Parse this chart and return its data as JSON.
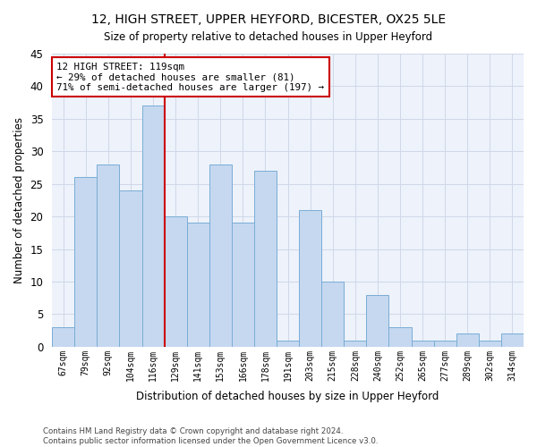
{
  "title": "12, HIGH STREET, UPPER HEYFORD, BICESTER, OX25 5LE",
  "subtitle": "Size of property relative to detached houses in Upper Heyford",
  "xlabel": "Distribution of detached houses by size in Upper Heyford",
  "ylabel": "Number of detached properties",
  "categories": [
    "67sqm",
    "79sqm",
    "92sqm",
    "104sqm",
    "116sqm",
    "129sqm",
    "141sqm",
    "153sqm",
    "166sqm",
    "178sqm",
    "191sqm",
    "203sqm",
    "215sqm",
    "228sqm",
    "240sqm",
    "252sqm",
    "265sqm",
    "277sqm",
    "289sqm",
    "302sqm",
    "314sqm"
  ],
  "values": [
    3,
    26,
    28,
    24,
    37,
    20,
    19,
    28,
    19,
    27,
    1,
    21,
    10,
    1,
    8,
    3,
    1,
    1,
    2,
    1,
    2
  ],
  "bar_color": "#c5d8f0",
  "bar_edge_color": "#7aadd4",
  "grid_color": "#d0d8e8",
  "background_color": "#edf2fb",
  "vline_index": 4.5,
  "annotation_text_line1": "12 HIGH STREET: 119sqm",
  "annotation_text_line2": "← 29% of detached houses are smaller (81)",
  "annotation_text_line3": "71% of semi-detached houses are larger (197) →",
  "annotation_box_facecolor": "#ffffff",
  "annotation_box_edgecolor": "#cc0000",
  "vline_color": "#cc0000",
  "footer_line1": "Contains HM Land Registry data © Crown copyright and database right 2024.",
  "footer_line2": "Contains public sector information licensed under the Open Government Licence v3.0.",
  "ylim": [
    0,
    45
  ],
  "yticks": [
    0,
    5,
    10,
    15,
    20,
    25,
    30,
    35,
    40,
    45
  ]
}
